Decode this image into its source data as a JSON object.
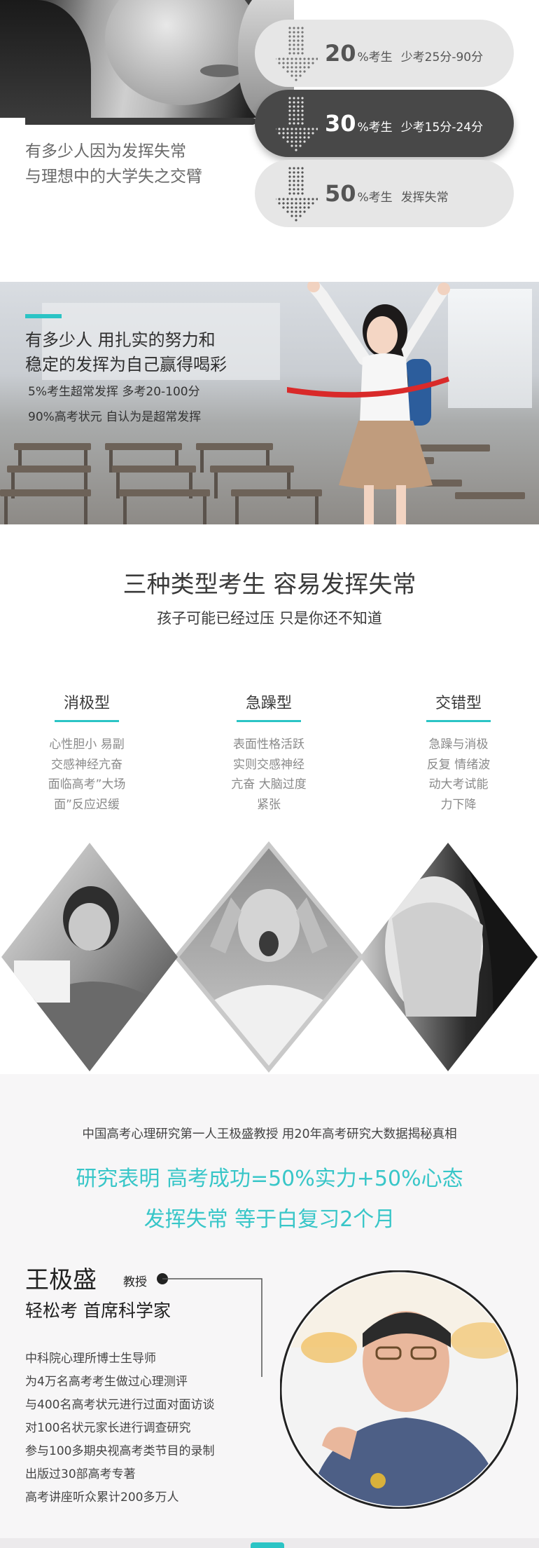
{
  "intro": {
    "text_line1": "有多少人因为发挥失常",
    "text_line2": "与理想中的大学失之交臂",
    "stats": [
      {
        "pct": "20",
        "unit": "%考生",
        "desc": "少考25分-90分",
        "style": "light"
      },
      {
        "pct": "30",
        "unit": "%考生",
        "desc": "少考15分-24分",
        "style": "dark"
      },
      {
        "pct": "50",
        "unit": "%考生",
        "desc": "发挥失常",
        "style": "light"
      }
    ]
  },
  "success": {
    "title_line1": "有多少人   用扎实的努力和",
    "title_line2": "稳定的发挥为自己赢得喝彩",
    "line1": "5%考生超常发挥   多考20-100分",
    "line2": "90%高考状元   自认为是超常发挥",
    "accent_color": "#2bc4c5"
  },
  "types_section": {
    "title": "三种类型考生   容易发挥失常",
    "subtitle": "孩子可能已经过压   只是你还不知道",
    "types": [
      {
        "name": "消极型",
        "desc": [
          "心性胆小  易副",
          "交感神经亢奋",
          "面临高考”大场",
          "面”反应迟缓"
        ]
      },
      {
        "name": "急躁型",
        "desc": [
          "表面性格活跃",
          "实则交感神经",
          "亢奋 大脑过度",
          "紧张"
        ]
      },
      {
        "name": "交错型",
        "desc": [
          "急躁与消极",
          "反复  情绪波",
          "动大考试能",
          "力下降"
        ]
      }
    ]
  },
  "expert": {
    "lead": "中国高考心理研究第一人王极盛教授   用20年高考研究大数据揭秘真相",
    "headline1": "研究表明  高考成功=50%实力+50%心态",
    "headline2": "发挥失常  等于白复习2个月",
    "name": "王极盛",
    "role": "教授",
    "title": "轻松考   首席科学家",
    "credentials": [
      "中科院心理所博士生导师",
      "为4万名高考考生做过心理测评",
      "与400名高考状元进行过面对面访谈",
      "对100名状元家长进行调查研究",
      "参与100多期央视高考类节目的录制",
      "出版过30部高考专著",
      "高考讲座听众累计200多万人"
    ],
    "accent_color": "#38c6c8"
  }
}
